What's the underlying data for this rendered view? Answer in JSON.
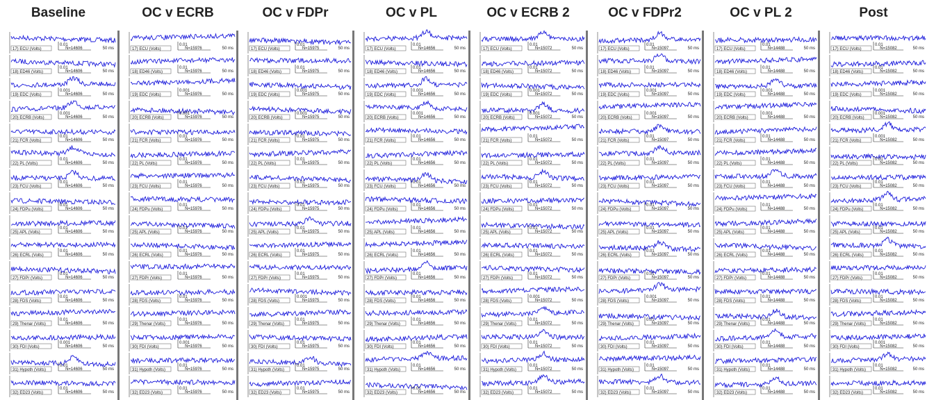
{
  "columns": [
    {
      "title": "Baseline",
      "n": "N=14606",
      "amp_scales": [
        "0.01",
        "0.01",
        "0.001",
        "0.001",
        "0.01",
        "0.01",
        "0.01",
        "0.01",
        "0.01",
        "0.01",
        "0.01",
        "0.01",
        "0.01",
        "0.001",
        "0.01",
        "0.01"
      ]
    },
    {
      "title": "OC v ECRB",
      "n": "N=15976",
      "amp_scales": [
        "0.01",
        "0.01",
        "0.001",
        "0.001",
        "0.01",
        "0.01",
        "0.01",
        "0.01",
        "0.01",
        "0.01",
        "0.01",
        "0.01",
        "0.01",
        "0.001",
        "0.01",
        "0.01"
      ]
    },
    {
      "title": "OC v FDPr",
      "n": "N=15975",
      "amp_scales": [
        "0.01",
        "0.01",
        "0.001",
        "0.001",
        "0.01",
        "0.01",
        "0.01",
        "0.01",
        "0.01",
        "0.01",
        "0.01",
        "0.001",
        "0.01",
        "0.01",
        "0.01",
        "0.01"
      ]
    },
    {
      "title": "OC v PL",
      "n": "N=14656",
      "amp_scales": [
        "0.01",
        "0.01",
        "0.001",
        "0.001",
        "0.01",
        "0.01",
        "0.01",
        "0.01",
        "0.01",
        "0.01",
        "0.01",
        "0.01",
        "0.01",
        "0.01",
        "0.01",
        "0.01"
      ]
    },
    {
      "title": "OC v ECRB 2",
      "n": "N=15072",
      "amp_scales": [
        "0.01",
        "0.01",
        "0.001",
        "0.001",
        "0.01",
        "0.01",
        "0.01",
        "0.01",
        "0.01",
        "0.01",
        "0.01",
        "0.001",
        "0.01",
        "0.01",
        "0.01",
        "0.01"
      ]
    },
    {
      "title": "OC v FDPr2",
      "n": "N=15097",
      "amp_scales": [
        "0.01",
        "0.01",
        "0.001",
        "0.001",
        "0.01",
        "0.01",
        "0.01",
        "0.01",
        "0.01",
        "0.01",
        "0.01",
        "0.001",
        "0.01",
        "0.01",
        "0.01",
        "0.01"
      ]
    },
    {
      "title": "OC v PL 2",
      "n": "N=14488",
      "amp_scales": [
        "0.01",
        "0.01",
        "0.001",
        "0.001",
        "0.01",
        "0.01",
        "0.01",
        "0.01",
        "0.01",
        "0.01",
        "0.01",
        "0.01",
        "0.01",
        "0.01",
        "0.01",
        "0.01"
      ]
    },
    {
      "title": "Post",
      "n": "N=15082",
      "amp_scales": [
        "0.01",
        "0.01",
        "0.001",
        "0.001",
        "0.001",
        "0.01",
        "0.01",
        "0.01",
        "0.01",
        "0.01",
        "0.01",
        "0.01",
        "0.01",
        "0.001",
        "0.01",
        "0.01"
      ]
    }
  ],
  "channels": [
    "17) ECU  (Volts)",
    "18) ED46  (Volts)",
    "19) EDC  (Volts)",
    "20) ECRB  (Volts)",
    "21) FCR  (Volts)",
    "22) PL  (Volts)",
    "23) FCU  (Volts)",
    "24) FDPu  (Volts)",
    "25) APL  (Volts)",
    "26) ECRL  (Volts)",
    "27) FDPr  (Volts)",
    "28) FDS  (Volts)",
    "29) Thenar  (Volts)",
    "30) FDI  (Volts)",
    "31) Hypoth  (Volts)",
    "32) ED23  (Volts)"
  ],
  "time_scale": "50 ms"
}
